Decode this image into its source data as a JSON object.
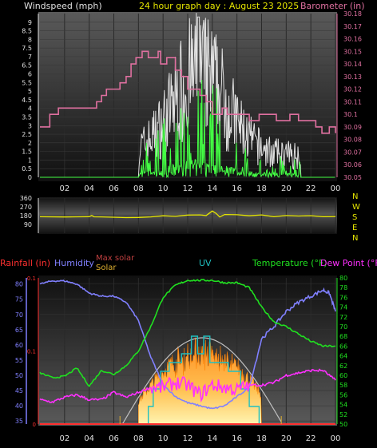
{
  "header": {
    "left_title": "Windspeed (mph)",
    "center_title": "24 hour graph day : August 23 2025",
    "right_title": "Barometer (in)"
  },
  "colors": {
    "background": "#000000",
    "panel_top": "#5a5a5a",
    "panel_bottom": "#101010",
    "wind_speed": "#e0e0e0",
    "wind_gust": "#44ff44",
    "barometer": "#e070a0",
    "direction": "#e6e600",
    "rain": "#ff3030",
    "humidity": "#8080ff",
    "max_solar": "#c0c0c0",
    "solar_fill": "#ffa030",
    "uv": "#20c0c0",
    "temperature": "#20e020",
    "dew_point": "#ff30ff",
    "axis_left_top": "#e0e0e0",
    "axis_right_top": "#e070a0"
  },
  "chart_data": [
    {
      "type": "line",
      "title": "24 hour graph day : August 23 2025",
      "x_ticks": [
        "02",
        "04",
        "06",
        "08",
        "10",
        "12",
        "14",
        "16",
        "18",
        "20",
        "22",
        "00"
      ],
      "x_range_hours": [
        0,
        24
      ],
      "left_axis": {
        "label": "Windspeed (mph)",
        "range": [
          0,
          9.5
        ],
        "ticks": [
          "0",
          "0.5",
          "1",
          "1.5",
          "2",
          "2.5",
          "3",
          "3.5",
          "4",
          "4.5",
          "5",
          "5.5",
          "6",
          "6.5",
          "7",
          "7.5",
          "8",
          "8.5",
          "9"
        ]
      },
      "right_axis": {
        "label": "Barometer (in)",
        "range": [
          30.05,
          30.18
        ],
        "ticks": [
          "30.05",
          "30.06",
          "30.07",
          "30.08",
          "30.09",
          "30.1",
          "30.11",
          "30.12",
          "30.13",
          "30.14",
          "30.15",
          "30.16",
          "30.17",
          "30.18"
        ]
      },
      "series": [
        {
          "key": "barometer",
          "hours": [
            0,
            0.6,
            0.8,
            1.2,
            1.5,
            4.5,
            4.6,
            5.0,
            5.4,
            6.5,
            7.0,
            7.4,
            7.8,
            8.3,
            8.8,
            9.6,
            9.8,
            10.3,
            11.0,
            11.5,
            12.0,
            13.0,
            13.5,
            14.0,
            14.8,
            15.2,
            16.2,
            17.0,
            17.8,
            18.6,
            19.2,
            20.3,
            21.0,
            22.4,
            22.9,
            23.5,
            24
          ],
          "values": [
            30.09,
            30.09,
            30.1,
            30.1,
            30.105,
            30.105,
            30.11,
            30.115,
            30.12,
            30.125,
            30.13,
            30.14,
            30.145,
            30.15,
            30.145,
            30.15,
            30.14,
            30.145,
            30.135,
            30.13,
            30.12,
            30.115,
            30.11,
            30.1,
            30.105,
            30.1,
            30.1,
            30.095,
            30.1,
            30.1,
            30.095,
            30.1,
            30.095,
            30.09,
            30.085,
            30.09,
            30.085
          ]
        },
        {
          "key": "wind_speed_avg",
          "shape": "0 mph until about 08:00, then a gusty, noisy trace 1–8 mph peaking near 13:00, dropping back to 0 after about 21:00"
        },
        {
          "key": "wind_gust",
          "shape": "0 mph until about 08:00, then 0–3 mph with spikes up to about 7 mph near 12:00–13:00"
        }
      ]
    },
    {
      "type": "line",
      "title": "Wind direction",
      "left_axis": {
        "ticks": [
          "90",
          "180",
          "270",
          "360"
        ],
        "range": [
          0,
          360
        ]
      },
      "right_axis": {
        "ticks": [
          "N",
          "W",
          "S",
          "E",
          "N"
        ]
      },
      "series": [
        {
          "key": "direction",
          "hours": [
            0,
            2,
            3,
            4,
            4.2,
            4.4,
            5,
            7,
            8,
            9,
            10,
            11,
            12,
            13,
            13.5,
            14.0,
            14.3,
            14.6,
            15,
            16,
            17,
            18,
            19,
            20,
            21,
            22,
            23,
            24
          ],
          "values": [
            168,
            168,
            168,
            168,
            182,
            168,
            168,
            160,
            163,
            170,
            180,
            172,
            185,
            190,
            178,
            230,
            205,
            165,
            190,
            188,
            178,
            185,
            172,
            182,
            178,
            180,
            170,
            172
          ]
        }
      ]
    },
    {
      "type": "line",
      "title": "Rainfall / Humidity / Solar / UV / Temperature / Dew Point",
      "legend": [
        "Rainfall (in)",
        "Humidity",
        "Max solar",
        "Solar",
        "UV",
        "Temperature (°F)",
        "Dew Point (°F)"
      ],
      "left_axis": {
        "label": "Humidity",
        "range": [
          34,
          82
        ],
        "ticks": [
          "35",
          "40",
          "45",
          "50",
          "55",
          "60",
          "65",
          "70",
          "75",
          "80"
        ]
      },
      "rain_axis": {
        "label": "Rainfall (in)",
        "range": [
          0,
          0.2
        ],
        "ticks": [
          "0",
          "0.1",
          "0.1"
        ]
      },
      "right_axis": {
        "label": "Temperature (°F)",
        "range": [
          50,
          80
        ],
        "ticks": [
          "50",
          "52",
          "54",
          "56",
          "58",
          "60",
          "62",
          "64",
          "66",
          "68",
          "70",
          "72",
          "74",
          "76",
          "78",
          "80"
        ]
      },
      "series": [
        {
          "key": "humidity",
          "hours": [
            0,
            1,
            2,
            3,
            4,
            5,
            6,
            7,
            8,
            9,
            10,
            11,
            12,
            13,
            14,
            15,
            16,
            17,
            18,
            19,
            20,
            21,
            22,
            23,
            23.5,
            24
          ],
          "values": [
            80,
            81,
            81,
            80,
            77,
            76,
            76,
            74,
            68,
            56,
            47,
            43,
            41,
            40,
            39,
            40,
            43,
            46,
            62,
            66,
            71,
            74,
            76,
            78,
            77,
            71
          ]
        },
        {
          "key": "temperature",
          "hours": [
            0,
            1,
            2,
            3,
            4,
            5,
            6,
            7,
            8,
            9,
            10,
            11,
            12,
            13,
            14,
            15,
            16,
            17,
            18,
            19,
            20,
            21,
            22,
            23,
            24
          ],
          "values": [
            60.5,
            59.5,
            59.8,
            61.5,
            57.8,
            61.0,
            60.2,
            62.0,
            65.0,
            70.0,
            76.0,
            78.5,
            79.5,
            79.5,
            79.5,
            79.0,
            79.0,
            78.0,
            74.0,
            71.0,
            70.0,
            68.5,
            67.0,
            66.0,
            66.0
          ]
        },
        {
          "key": "dew_point",
          "hours": [
            0,
            1,
            2,
            3,
            4,
            5,
            6,
            7,
            8,
            9,
            10,
            11,
            12,
            13,
            14,
            15,
            16,
            17,
            18,
            19,
            20,
            21,
            22,
            23,
            24
          ],
          "values": [
            55.0,
            54.5,
            55.5,
            56.0,
            55.0,
            55.0,
            56.5,
            55.5,
            56.5,
            57.5,
            57.5,
            58.5,
            58.0,
            56.0,
            58.0,
            57.5,
            57.0,
            58.0,
            58.0,
            58.5,
            60.0,
            60.5,
            61.0,
            61.0,
            59.0
          ]
        },
        {
          "key": "max_solar",
          "shape": "bell curve from about 06:40 to 19:40 peaking near 13:00"
        },
        {
          "key": "solar",
          "shape": "orange filled area from about 08:00 to 18:00, noisy, peaking about 13:00"
        },
        {
          "key": "uv",
          "shape": "step line from about 08:40 to 18:00, highest about 12:30–13:30"
        },
        {
          "key": "rainfall",
          "shape": "zero all day"
        }
      ]
    }
  ]
}
